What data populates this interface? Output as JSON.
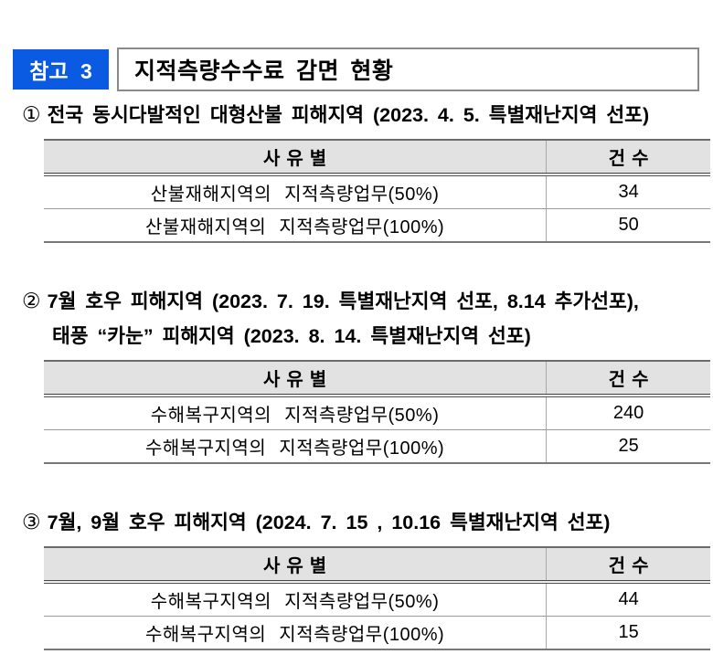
{
  "page": {
    "badge_label": "참고 3",
    "badge_color": "#0b5ae2",
    "title": "지적측량수수료 감면 현황"
  },
  "sections": [
    {
      "number": "①",
      "heading": "전국 동시다발적인 대형산불 피해지역 (2023. 4. 5. 특별재난지역 선포)",
      "table": {
        "col_reason": "사유별",
        "col_count": "건수",
        "rows": [
          {
            "label": "산불재해지역의 지적측량업무(50%)",
            "count": "34"
          },
          {
            "label": "산불재해지역의 지적측량업무(100%)",
            "count": "50"
          }
        ]
      }
    },
    {
      "number": "②",
      "heading": "7월 호우 피해지역 (2023. 7. 19. 특별재난지역 선포, 8.14 추가선포),",
      "heading_line2": "태풍 “카눈” 피해지역 (2023. 8. 14. 특별재난지역 선포)",
      "table": {
        "col_reason": "사유별",
        "col_count": "건수",
        "rows": [
          {
            "label": "수해복구지역의 지적측량업무(50%)",
            "count": "240"
          },
          {
            "label": "수해복구지역의 지적측량업무(100%)",
            "count": "25"
          }
        ]
      }
    },
    {
      "number": "③",
      "heading": "7월, 9월 호우 피해지역 (2024. 7. 15 , 10.16 특별재난지역 선포)",
      "table": {
        "col_reason": "사유별",
        "col_count": "건수",
        "rows": [
          {
            "label": "수해복구지역의 지적측량업무(50%)",
            "count": "44"
          },
          {
            "label": "수해복구지역의 지적측량업무(100%)",
            "count": "15"
          }
        ]
      }
    }
  ]
}
